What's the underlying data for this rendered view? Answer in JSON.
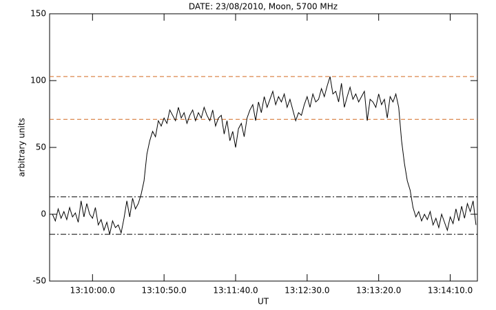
{
  "chart_data": {
    "type": "line",
    "title": "DATE: 23/08/2010, Moon, 5700 MHz",
    "xlabel": "UT",
    "ylabel": "arbitrary units",
    "x": [
      47372,
      47374,
      47376,
      47378,
      47380,
      47382,
      47384,
      47386,
      47388,
      47390,
      47392,
      47394,
      47396,
      47398,
      47400,
      47402,
      47404,
      47406,
      47408,
      47410,
      47412,
      47414,
      47416,
      47418,
      47420,
      47422,
      47424,
      47426,
      47428,
      47430,
      47432,
      47434,
      47436,
      47438,
      47440,
      47442,
      47444,
      47446,
      47448,
      47450,
      47452,
      47454,
      47456,
      47458,
      47460,
      47462,
      47464,
      47466,
      47468,
      47470,
      47472,
      47474,
      47476,
      47478,
      47480,
      47482,
      47484,
      47486,
      47488,
      47490,
      47492,
      47494,
      47496,
      47498,
      47500,
      47502,
      47504,
      47506,
      47508,
      47510,
      47512,
      47514,
      47516,
      47518,
      47520,
      47522,
      47524,
      47526,
      47528,
      47530,
      47532,
      47534,
      47536,
      47538,
      47540,
      47542,
      47544,
      47546,
      47548,
      47550,
      47552,
      47554,
      47556,
      47558,
      47560,
      47562,
      47564,
      47566,
      47568,
      47570,
      47572,
      47574,
      47576,
      47578,
      47580,
      47582,
      47584,
      47586,
      47588,
      47590,
      47592,
      47594,
      47596,
      47598,
      47600,
      47602,
      47604,
      47606,
      47608,
      47610,
      47612,
      47614,
      47616,
      47618,
      47620,
      47622,
      47624,
      47626,
      47628,
      47630,
      47632,
      47634,
      47636,
      47638,
      47640,
      47642,
      47644,
      47646,
      47648,
      47650,
      47652,
      47654,
      47656,
      47658,
      47660,
      47662,
      47664,
      47666,
      47668
    ],
    "series": [
      {
        "color": "#000000",
        "values": [
          0,
          -5,
          4,
          -3,
          2,
          -4,
          5,
          -2,
          1,
          -6,
          10,
          -2,
          8,
          0,
          -3,
          5,
          -8,
          -4,
          -12,
          -6,
          -15,
          -5,
          -10,
          -8,
          -14,
          -3,
          10,
          -2,
          12,
          4,
          8,
          15,
          25,
          45,
          55,
          62,
          58,
          70,
          66,
          72,
          68,
          78,
          74,
          70,
          80,
          72,
          76,
          68,
          74,
          78,
          70,
          76,
          72,
          80,
          74,
          70,
          78,
          66,
          72,
          74,
          60,
          70,
          55,
          62,
          50,
          64,
          68,
          58,
          72,
          78,
          82,
          70,
          84,
          76,
          88,
          80,
          86,
          92,
          82,
          88,
          84,
          90,
          80,
          86,
          78,
          70,
          76,
          74,
          82,
          88,
          80,
          90,
          84,
          86,
          94,
          88,
          96,
          103,
          90,
          92,
          84,
          98,
          80,
          88,
          95,
          86,
          90,
          84,
          88,
          92,
          70,
          86,
          84,
          80,
          90,
          82,
          86,
          72,
          88,
          84,
          90,
          80,
          55,
          38,
          25,
          18,
          5,
          -2,
          2,
          -5,
          0,
          -4,
          2,
          -8,
          -3,
          -10,
          0,
          -6,
          -12,
          -2,
          -7,
          4,
          -5,
          6,
          -3,
          8,
          2,
          10,
          -8
        ]
      }
    ],
    "xlim": [
      47370,
      47669
    ],
    "xticks": [
      {
        "value": 47400,
        "label": "13:10:00.0"
      },
      {
        "value": 47450,
        "label": "13:10:50.0"
      },
      {
        "value": 47500,
        "label": "13:11:40.0"
      },
      {
        "value": 47550,
        "label": "13:12:30.0"
      },
      {
        "value": 47600,
        "label": "13:13:20.0"
      },
      {
        "value": 47650,
        "label": "13:14:10.0"
      }
    ],
    "ylim": [
      -50,
      150
    ],
    "yticks": [
      -50,
      0,
      50,
      100,
      150
    ],
    "hlines": [
      {
        "value": 103,
        "color": "#d2691e",
        "style": "dashed"
      },
      {
        "value": 71,
        "color": "#d2691e",
        "style": "dashed"
      },
      {
        "value": 13,
        "color": "#000000",
        "style": "dashdot"
      },
      {
        "value": -15,
        "color": "#000000",
        "style": "dashdot"
      }
    ]
  }
}
